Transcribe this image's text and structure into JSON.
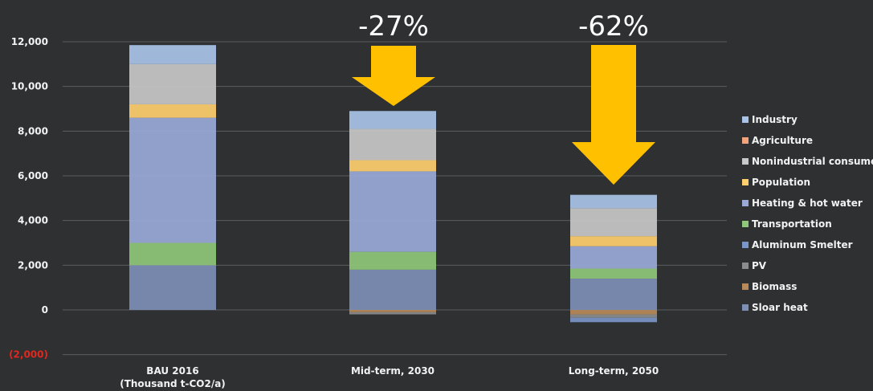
{
  "chart_data": {
    "type": "bar",
    "stacked": true,
    "categories": [
      "BAU 2016\n(Thousand t-CO2/a)",
      "Mid-term, 2030",
      "Long-term, 2050"
    ],
    "ylim": [
      -2000,
      12000
    ],
    "yticks": [
      12000,
      10000,
      8000,
      6000,
      4000,
      2000,
      0,
      -2000
    ],
    "ytick_labels": [
      "12,000",
      "10,000",
      "8,000",
      "6,000",
      "4,000",
      "2,000",
      "0",
      "(2,000)"
    ],
    "grid": true,
    "legend_position": "right",
    "series": [
      {
        "name": "Sloar heat",
        "color": "#7e8fb5",
        "values": [
          2000,
          1800,
          1400
        ]
      },
      {
        "name": "Biomass",
        "color": "#b88a5a",
        "values": [
          0,
          -100,
          -200
        ]
      },
      {
        "name": "PV",
        "color": "#8c8c8c",
        "values": [
          0,
          -100,
          -150
        ]
      },
      {
        "name": "Aluminum Smelter",
        "color": "#7a95c8",
        "values": [
          0,
          0,
          -200
        ]
      },
      {
        "name": "Transportation",
        "color": "#8fc87a",
        "values": [
          1000,
          800,
          450
        ]
      },
      {
        "name": "Heating & hot water",
        "color": "#9aa9d8",
        "values": [
          5600,
          3600,
          1000
        ]
      },
      {
        "name": "Population",
        "color": "#ffcf6e",
        "values": [
          600,
          500,
          450
        ]
      },
      {
        "name": "Nonindustrial consumers",
        "color": "#c8c8c8",
        "values": [
          1800,
          1400,
          1250
        ]
      },
      {
        "name": "Agriculture",
        "color": "#f2a47e",
        "values": [
          0,
          0,
          0
        ]
      },
      {
        "name": "Industry",
        "color": "#a9c4e8",
        "values": [
          850,
          800,
          600
        ]
      }
    ],
    "legend_order": [
      "Industry",
      "Agriculture",
      "Nonindustrial consumers",
      "Population",
      "Heating & hot water",
      "Transportation",
      "Aluminum Smelter",
      "PV",
      "Biomass",
      "Sloar heat"
    ],
    "annotations": [
      {
        "text": "-27%",
        "category": 1
      },
      {
        "text": "-62%",
        "category": 2
      }
    ],
    "arrow_color": "#ffc000"
  }
}
